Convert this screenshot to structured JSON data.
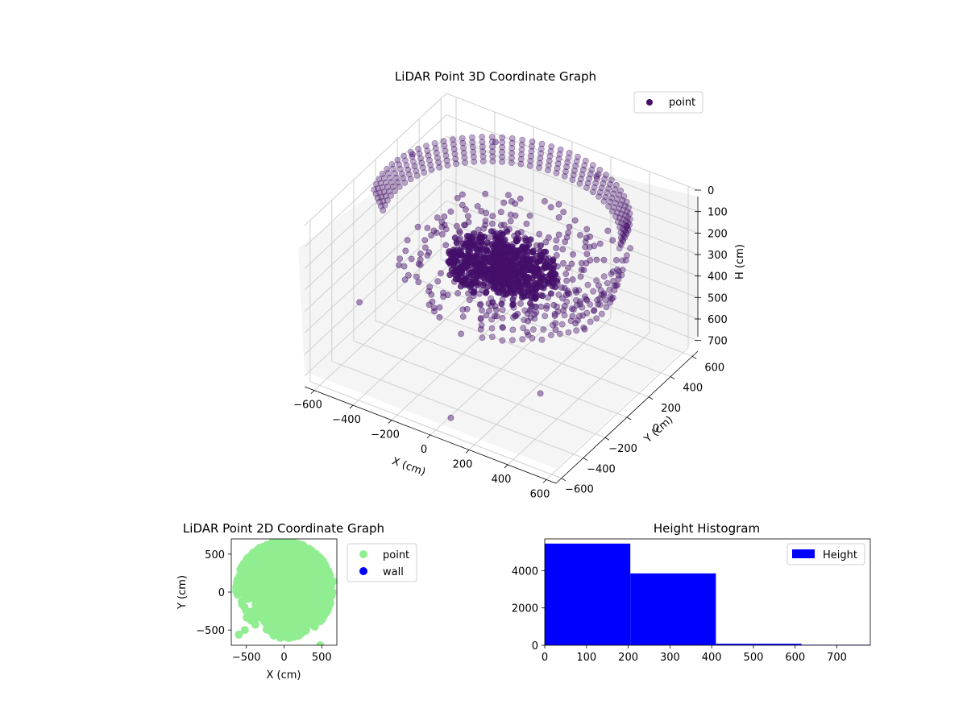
{
  "chart_data": [
    {
      "type": "scatter",
      "projection": "3d",
      "title": "LiDAR Point 3D Coordinate Graph",
      "xlabel": "X (cm)",
      "ylabel": "Y (cm)",
      "zlabel": "H (cm)",
      "x_ticks": [
        "−600",
        "−400",
        "−200",
        "0",
        "200",
        "400",
        "600"
      ],
      "y_ticks": [
        "−600",
        "−400",
        "−200",
        "0",
        "200",
        "400",
        "600"
      ],
      "z_ticks": [
        "0",
        "100",
        "200",
        "300",
        "400",
        "500",
        "600",
        "700"
      ],
      "xlim": [
        -650,
        650
      ],
      "ylim": [
        -650,
        650
      ],
      "zlim": [
        0,
        750
      ],
      "z_inverted": true,
      "grid": true,
      "legend": "top-right",
      "series": [
        {
          "name": "point",
          "color": "#440f6a",
          "shape": "ring of points around the sensor at radius ~560 cm near the top, dense cluster near the centre, sparse outliers toward the lower front",
          "sample_points": [
            {
              "x": -560,
              "y": 180,
              "h": 30
            },
            {
              "x": -300,
              "y": 480,
              "h": 25
            },
            {
              "x": 200,
              "y": 520,
              "h": 30
            },
            {
              "x": 480,
              "y": 300,
              "h": 60
            },
            {
              "x": 560,
              "y": -100,
              "h": 120
            },
            {
              "x": 0,
              "y": 0,
              "h": 300
            },
            {
              "x": -100,
              "y": 50,
              "h": 330
            },
            {
              "x": 150,
              "y": -50,
              "h": 320
            },
            {
              "x": -620,
              "y": -200,
              "h": 560
            },
            {
              "x": 50,
              "y": -550,
              "h": 700
            },
            {
              "x": 400,
              "y": -350,
              "h": 560
            }
          ]
        }
      ]
    },
    {
      "type": "scatter",
      "title": "LiDAR Point 2D Coordinate Graph",
      "xlabel": "X (cm)",
      "ylabel": "Y (cm)",
      "x_ticks": [
        "−500",
        "0",
        "500"
      ],
      "y_ticks": [
        "500",
        "0",
        "−500"
      ],
      "xlim": [
        -700,
        700
      ],
      "ylim": [
        -700,
        700
      ],
      "legend": "outside-right",
      "series": [
        {
          "name": "point",
          "color": "#90ee90",
          "shape": "dense filled region covering most of the upper half and centre, radius ~600 cm, sparser toward the lower left",
          "sample_points": [
            {
              "x": -600,
              "y": -560
            },
            {
              "x": -520,
              "y": -500
            },
            {
              "x": -380,
              "y": -430
            },
            {
              "x": -60,
              "y": -560
            },
            {
              "x": 80,
              "y": -560
            },
            {
              "x": 480,
              "y": -700
            },
            {
              "x": 540,
              "y": -180
            },
            {
              "x": 640,
              "y": 0
            },
            {
              "x": 650,
              "y": 140
            }
          ]
        },
        {
          "name": "wall",
          "color": "#0000ff",
          "sample_points": []
        }
      ]
    },
    {
      "type": "bar",
      "subtype": "histogram",
      "title": "Height Histogram",
      "xlabel": "",
      "ylabel": "",
      "x_ticks": [
        "0",
        "100",
        "200",
        "300",
        "400",
        "500",
        "600",
        "700"
      ],
      "y_ticks": [
        "0",
        "2000",
        "4000"
      ],
      "xlim": [
        0,
        780
      ],
      "ylim": [
        0,
        5700
      ],
      "legend": "top-right",
      "series": [
        {
          "name": "Height",
          "color": "#0000ff",
          "bins": [
            {
              "start": 0,
              "end": 205,
              "count": 5450
            },
            {
              "start": 205,
              "end": 410,
              "count": 3850
            },
            {
              "start": 410,
              "end": 615,
              "count": 80
            },
            {
              "start": 615,
              "end": 820,
              "count": 25
            }
          ]
        }
      ]
    }
  ]
}
